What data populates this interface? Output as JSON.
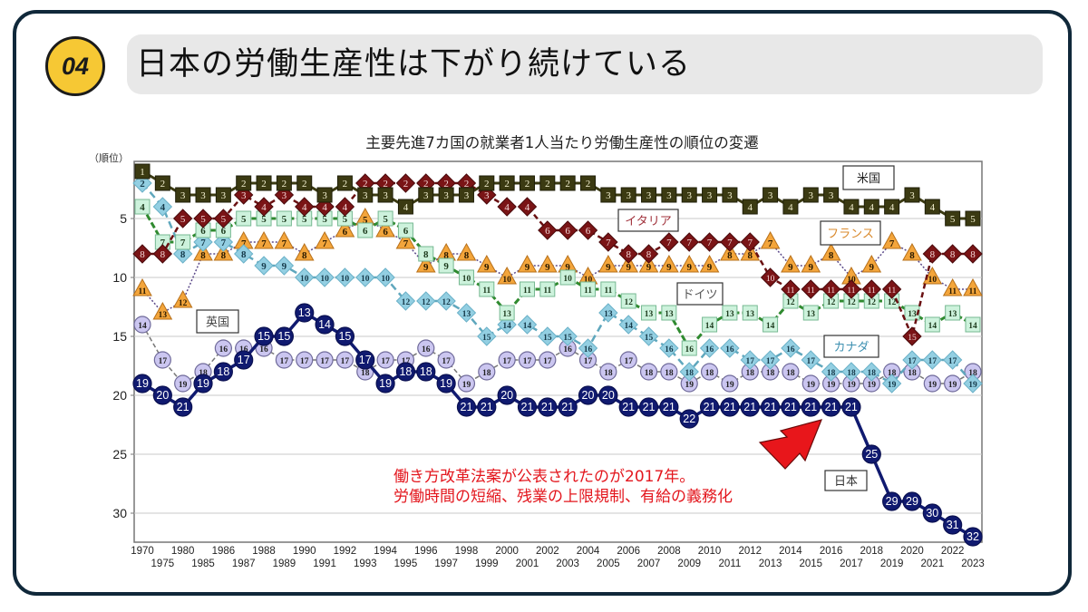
{
  "slide": {
    "number": "04",
    "title": "日本の労働生産性は下がり続けている"
  },
  "annotation": {
    "line1": "働き方改革法案が公表されたのが2017年。",
    "line2": "労働時間の短縮、残業の上限規制、有給の義務化"
  },
  "colors": {
    "frame": "#10283a",
    "badge": "#f6c834",
    "title_bar": "#e8e8e8",
    "annotation": "#e3161d",
    "arrow": "#e8161b"
  },
  "chart_data": {
    "type": "line",
    "title": "主要先進7カ国の就業者1人当たり労働生産性の順位の変遷",
    "ylabel": "（順位）",
    "xlabel": "",
    "ylim": [
      1,
      32
    ],
    "y_inverted": true,
    "yticks": [
      5,
      10,
      15,
      20,
      25,
      30
    ],
    "grid": true,
    "x": [
      1970,
      1975,
      1980,
      1985,
      1986,
      1987,
      1988,
      1989,
      1990,
      1991,
      1992,
      1993,
      1994,
      1995,
      1996,
      1997,
      1998,
      1999,
      2000,
      2001,
      2002,
      2003,
      2004,
      2005,
      2006,
      2007,
      2008,
      2009,
      2010,
      2011,
      2012,
      2013,
      2014,
      2015,
      2016,
      2017,
      2018,
      2019,
      2020,
      2021,
      2022,
      2023
    ],
    "xtick_labels": [
      "1970",
      "1975",
      "1980",
      "1985",
      "1986",
      "1987",
      "1988",
      "1989",
      "1990",
      "1991",
      "1992",
      "1993",
      "1994",
      "1995",
      "1996",
      "1997",
      "1998",
      "1999",
      "2000",
      "2001",
      "2002",
      "2003",
      "2004",
      "2005",
      "2006",
      "2007",
      "2008",
      "2009",
      "2010",
      "2011",
      "2012",
      "2013",
      "2014",
      "2015",
      "2016",
      "2017",
      "2018",
      "2019",
      "2020",
      "2021",
      "2022",
      "2023"
    ],
    "series": [
      {
        "name": "米国",
        "marker": "square",
        "color": "#3b3a12",
        "label_color": "#222222",
        "values": [
          1,
          2,
          3,
          3,
          3,
          2,
          2,
          2,
          2,
          3,
          2,
          3,
          3,
          4,
          3,
          3,
          3,
          2,
          2,
          2,
          2,
          2,
          2,
          3,
          3,
          3,
          3,
          3,
          3,
          3,
          4,
          3,
          4,
          3,
          3,
          4,
          4,
          4,
          3,
          4,
          5,
          5
        ]
      },
      {
        "name": "イタリア",
        "marker": "diamond",
        "color": "#7a1416",
        "label_color": "#a0303a",
        "values": [
          8,
          8,
          5,
          5,
          5,
          3,
          4,
          3,
          4,
          4,
          4,
          2,
          2,
          2,
          2,
          2,
          2,
          3,
          4,
          4,
          6,
          6,
          6,
          7,
          8,
          8,
          7,
          7,
          7,
          7,
          7,
          10,
          11,
          11,
          11,
          11,
          11,
          11,
          15,
          8,
          8,
          8
        ]
      },
      {
        "name": "ドイツ",
        "marker": "square",
        "color": "#c9f0d8",
        "line_color": "#2f8a2f",
        "label_color": "#555555",
        "values": [
          4,
          7,
          7,
          6,
          6,
          5,
          5,
          5,
          5,
          5,
          5,
          6,
          5,
          6,
          8,
          9,
          10,
          11,
          13,
          11,
          11,
          10,
          11,
          11,
          12,
          13,
          13,
          16,
          14,
          13,
          13,
          14,
          12,
          13,
          12,
          12,
          12,
          12,
          13,
          14,
          13,
          14
        ]
      },
      {
        "name": "フランス",
        "marker": "triangle",
        "color": "#f2a23a",
        "line_color": "#5c4a8a",
        "label_color": "#d9892b",
        "values": [
          11,
          13,
          12,
          8,
          8,
          7,
          7,
          7,
          8,
          7,
          6,
          5,
          6,
          7,
          9,
          8,
          8,
          9,
          10,
          9,
          9,
          9,
          10,
          9,
          9,
          9,
          9,
          9,
          9,
          8,
          8,
          7,
          9,
          9,
          8,
          10,
          9,
          7,
          8,
          10,
          11,
          11
        ]
      },
      {
        "name": "カナダ",
        "marker": "diamond",
        "color": "#92cde0",
        "line_color": "#5fa7bd",
        "label_color": "#3c8fb0",
        "values": [
          2,
          4,
          8,
          7,
          7,
          8,
          9,
          9,
          10,
          10,
          10,
          10,
          10,
          12,
          12,
          12,
          13,
          15,
          14,
          14,
          15,
          15,
          16,
          13,
          14,
          15,
          16,
          18,
          16,
          16,
          17,
          17,
          16,
          17,
          18,
          18,
          18,
          19,
          17,
          17,
          17,
          19
        ]
      },
      {
        "name": "英国",
        "marker": "circle",
        "color": "#c7c3ee",
        "line_color": "#777777",
        "label_color": "#444444",
        "values": [
          14,
          17,
          19,
          18,
          16,
          16,
          16,
          17,
          17,
          17,
          17,
          18,
          17,
          17,
          16,
          17,
          19,
          18,
          17,
          17,
          17,
          16,
          17,
          18,
          17,
          18,
          18,
          19,
          18,
          19,
          18,
          18,
          18,
          19,
          19,
          19,
          19,
          18,
          18,
          19,
          19,
          18
        ]
      },
      {
        "name": "日本",
        "marker": "circle",
        "color": "#101a70",
        "label_color": "#333333",
        "values": [
          19,
          20,
          21,
          19,
          18,
          17,
          15,
          15,
          13,
          14,
          15,
          17,
          19,
          18,
          18,
          19,
          21,
          21,
          20,
          21,
          21,
          21,
          20,
          20,
          21,
          21,
          21,
          22,
          21,
          21,
          21,
          21,
          21,
          21,
          21,
          21,
          25,
          29,
          29,
          30,
          31,
          32
        ]
      }
    ]
  }
}
